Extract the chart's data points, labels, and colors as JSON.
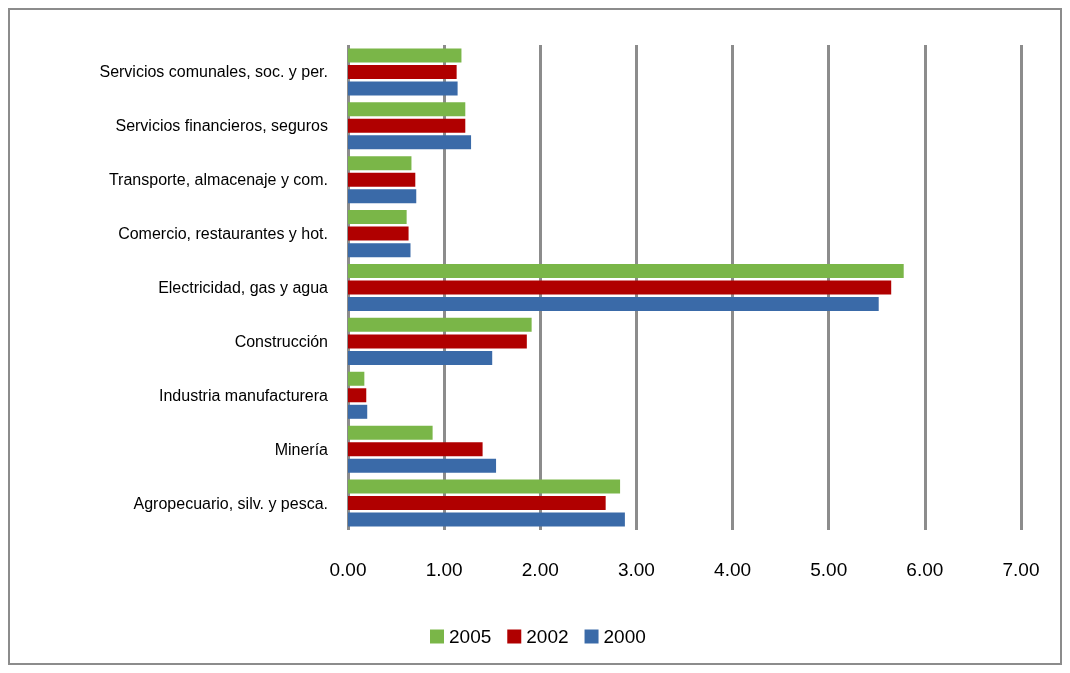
{
  "chart_data": {
    "type": "bar",
    "orientation": "horizontal",
    "categories": [
      "Servicios comunales, soc. y per.",
      "Servicios financieros, seguros",
      "Transporte, almacenaje y com.",
      "Comercio, restaurantes y hot.",
      "Electricidad, gas y agua",
      "Construcción",
      "Industria manufacturera",
      "Minería",
      "Agropecuario, silv. y pesca."
    ],
    "series": [
      {
        "name": "2005",
        "color": "#7ab648",
        "values": [
          1.18,
          1.22,
          0.66,
          0.61,
          5.78,
          1.91,
          0.17,
          0.88,
          2.83
        ]
      },
      {
        "name": "2002",
        "color": "#b00000",
        "values": [
          1.13,
          1.22,
          0.7,
          0.63,
          5.65,
          1.86,
          0.19,
          1.4,
          2.68
        ]
      },
      {
        "name": "2000",
        "color": "#3a6aa8",
        "values": [
          1.14,
          1.28,
          0.71,
          0.65,
          5.52,
          1.5,
          0.2,
          1.54,
          2.88
        ]
      }
    ],
    "xlim": [
      0,
      7
    ],
    "xticks": [
      {
        "value": 0,
        "label": "0.00"
      },
      {
        "value": 1,
        "label": "1.00"
      },
      {
        "value": 2,
        "label": "2.00"
      },
      {
        "value": 3,
        "label": "3.00"
      },
      {
        "value": 4,
        "label": "4.00"
      },
      {
        "value": 5,
        "label": "5.00"
      },
      {
        "value": 6,
        "label": "6.00"
      },
      {
        "value": 7,
        "label": "7.00"
      }
    ],
    "grid": "x",
    "legend": "bottom"
  }
}
